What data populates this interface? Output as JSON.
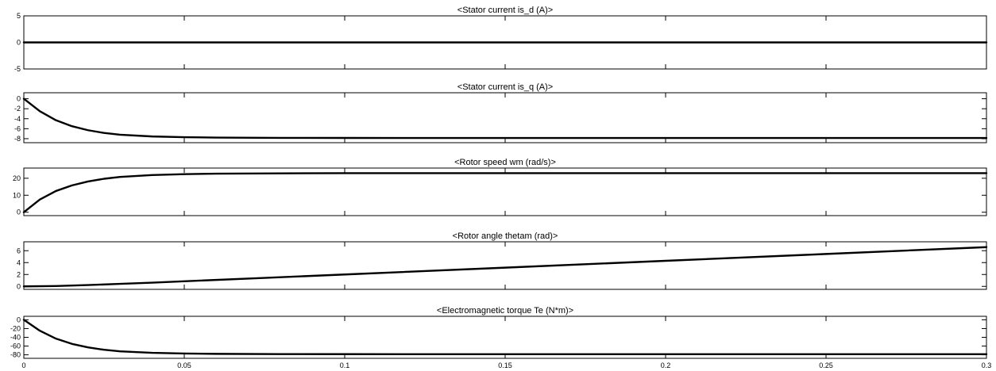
{
  "colors": {
    "background": "#ffffff",
    "trace": "#000000",
    "axes": "#000000"
  },
  "chart_data": [
    {
      "type": "line",
      "title": "<Stator current is_d (A)>",
      "xlim": [
        0,
        0.3
      ],
      "ylim": [
        -5,
        5
      ],
      "yticks": [
        5,
        0,
        -5
      ],
      "grid": false,
      "x": [
        0,
        0.3
      ],
      "y": [
        0,
        0
      ]
    },
    {
      "type": "line",
      "title": "<Stator current is_q (A)>",
      "xlim": [
        0,
        0.3
      ],
      "ylim": [
        -8.8,
        1.2
      ],
      "yticks": [
        0,
        -2,
        -4,
        -6,
        -8
      ],
      "grid": false,
      "x": [
        0,
        0.005,
        0.01,
        0.015,
        0.02,
        0.025,
        0.03,
        0.04,
        0.05,
        0.06,
        0.08,
        0.1,
        0.15,
        0.2,
        0.25,
        0.3
      ],
      "y": [
        0,
        -2.5,
        -4.3,
        -5.5,
        -6.3,
        -6.85,
        -7.2,
        -7.55,
        -7.7,
        -7.78,
        -7.83,
        -7.85,
        -7.86,
        -7.86,
        -7.86,
        -7.86
      ]
    },
    {
      "type": "line",
      "title": "<Rotor speed wm (rad/s)>",
      "xlim": [
        0,
        0.3
      ],
      "ylim": [
        -2,
        26
      ],
      "yticks": [
        20,
        10,
        0
      ],
      "grid": false,
      "x": [
        0,
        0.005,
        0.01,
        0.015,
        0.02,
        0.025,
        0.03,
        0.04,
        0.05,
        0.06,
        0.08,
        0.1,
        0.15,
        0.2,
        0.25,
        0.3
      ],
      "y": [
        0,
        7.5,
        12.5,
        15.8,
        18.1,
        19.7,
        20.8,
        21.9,
        22.4,
        22.7,
        22.9,
        23,
        23,
        23,
        23,
        23
      ]
    },
    {
      "type": "line",
      "title": "<Rotor angle thetam (rad)>",
      "xlim": [
        0,
        0.3
      ],
      "ylim": [
        -0.5,
        7.5
      ],
      "yticks": [
        6,
        4,
        2,
        0
      ],
      "grid": false,
      "x": [
        0,
        0.01,
        0.02,
        0.03,
        0.04,
        0.05,
        0.075,
        0.1,
        0.15,
        0.2,
        0.25,
        0.3
      ],
      "y": [
        0,
        0.06,
        0.22,
        0.42,
        0.63,
        0.86,
        1.43,
        2,
        3.15,
        4.3,
        5.45,
        6.6
      ]
    },
    {
      "type": "line",
      "title": "<Electromagnetic torque Te (N*m)>",
      "xlim": [
        0,
        0.3
      ],
      "ylim": [
        -88,
        8
      ],
      "yticks": [
        0,
        -20,
        -40,
        -60,
        -80
      ],
      "grid": false,
      "x": [
        0,
        0.005,
        0.01,
        0.015,
        0.02,
        0.025,
        0.03,
        0.04,
        0.05,
        0.06,
        0.08,
        0.1,
        0.15,
        0.2,
        0.25,
        0.3
      ],
      "y": [
        0,
        -25,
        -43,
        -55,
        -63,
        -68.5,
        -72,
        -75.5,
        -77,
        -77.8,
        -78.3,
        -78.5,
        -78.6,
        -78.6,
        -78.6,
        -78.6
      ]
    }
  ],
  "xaxis": {
    "ticks": [
      0,
      0.05,
      0.1,
      0.15,
      0.2,
      0.25,
      0.3
    ],
    "tick_labels": [
      "0",
      "0.05",
      "0.1",
      "0.15",
      "0.2",
      "0.25",
      "0.3"
    ]
  }
}
